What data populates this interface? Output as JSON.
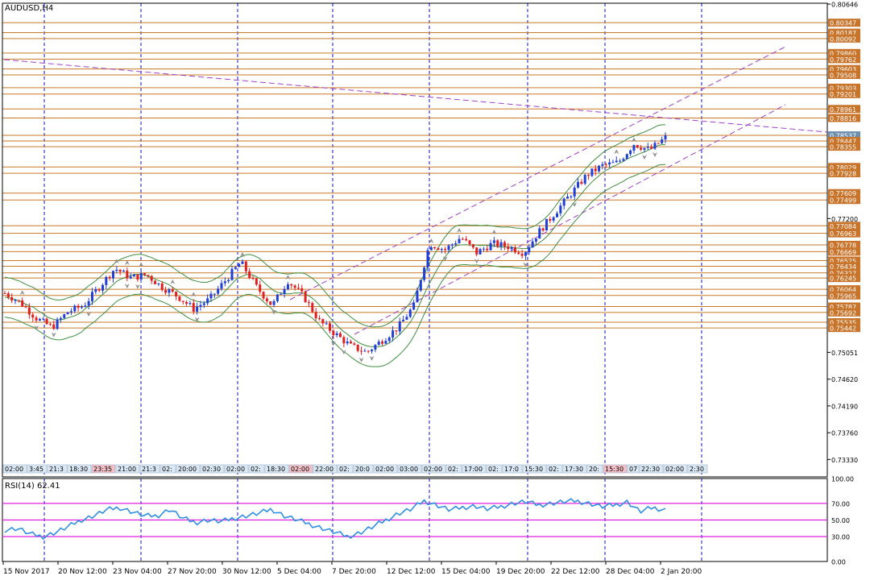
{
  "title": "AUDUSD,H4",
  "rsi_label": "RSI(14) 62.41",
  "colors": {
    "bull": "#1f3fd6",
    "bear": "#e02020",
    "hline": "#c87a2a",
    "band": "#3f8f3f",
    "channel": "#a040c8",
    "rsi": "#2f8fe0",
    "rsi_level": "#e020e0",
    "grid": "#1010c0"
  },
  "chart_data": {
    "type": "candlestick",
    "symbol": "AUDUSD",
    "timeframe": "H4",
    "price_axis": {
      "range": [
        0.7305,
        0.8066
      ],
      "ticks": [
        "0.80646",
        "0.77200",
        "0.75051",
        "0.74620",
        "0.74190",
        "0.73760",
        "0.73330"
      ]
    },
    "price_levels": [
      "0.80347",
      "0.80187",
      "0.80092",
      "0.79860",
      "0.79762",
      "0.79603",
      "0.79508",
      "0.79303",
      "0.79201",
      "0.78961",
      "0.78816",
      "0.78537",
      "0.78447",
      "0.78355",
      "0.78029",
      "0.77928",
      "0.77609",
      "0.77499",
      "0.77084",
      "0.76963",
      "0.76778",
      "0.76669",
      "0.76525",
      "0.76434",
      "0.76327",
      "0.76245",
      "0.76064",
      "0.75965",
      "0.75787",
      "0.75692",
      "0.75535",
      "0.75442"
    ],
    "current_price": "0.78537",
    "time_labels": [
      "15 Nov 2017",
      "20 Nov 12:00",
      "23 Nov 04:00",
      "27 Nov 20:00",
      "30 Nov 12:00",
      "5 Dec 04:00",
      "7 Dec 20:00",
      "12 Dec 12:00",
      "15 Dec 04:00",
      "19 Dec 20:00",
      "22 Dec 12:00",
      "28 Dec 04:00",
      "2 Jan 20:00"
    ],
    "session_labels": [
      "02:00",
      "3:45",
      "21:3",
      "18:30",
      "23:35",
      "21:00",
      "21:3",
      "02:",
      "20:00",
      "02:30",
      "02:00",
      "02:",
      "18:30",
      "02:00",
      "22:00",
      "02:",
      "20:0",
      "02:00",
      "03:00",
      "02:00",
      "02:",
      "17:00",
      "02:",
      "17:0",
      "15:30",
      "02:",
      "17:30",
      "20:",
      "15:30",
      "07",
      "22:30",
      "02:00",
      "2:30"
    ],
    "close_path": [
      0.76,
      0.7585,
      0.756,
      0.7545,
      0.757,
      0.758,
      0.761,
      0.764,
      0.7625,
      0.763,
      0.761,
      0.7595,
      0.7575,
      0.759,
      0.762,
      0.765,
      0.761,
      0.758,
      0.762,
      0.7595,
      0.7555,
      0.7535,
      0.7515,
      0.7505,
      0.7525,
      0.7545,
      0.758,
      0.768,
      0.767,
      0.769,
      0.7665,
      0.768,
      0.7675,
      0.7665,
      0.77,
      0.773,
      0.776,
      0.779,
      0.7805,
      0.781,
      0.784,
      0.783,
      0.785
    ],
    "rsi": {
      "label": "RSI(14) 62.41",
      "value": 62.41,
      "levels": [
        70,
        50,
        30
      ],
      "range": [
        0,
        100
      ],
      "ticks": [
        "100.00",
        "70.00",
        "50.00",
        "30.00",
        "0.00"
      ],
      "path": [
        38,
        40,
        33,
        30,
        35,
        42,
        50,
        55,
        62,
        65,
        60,
        55,
        55,
        63,
        52,
        47,
        50,
        48,
        52,
        55,
        58,
        63,
        55,
        50,
        45,
        40,
        35,
        30,
        35,
        42,
        50,
        58,
        63,
        73,
        68,
        62,
        65,
        67,
        63,
        66,
        70,
        72,
        68,
        70,
        72,
        73,
        70,
        66,
        68,
        72,
        60,
        65,
        62
      ]
    }
  }
}
